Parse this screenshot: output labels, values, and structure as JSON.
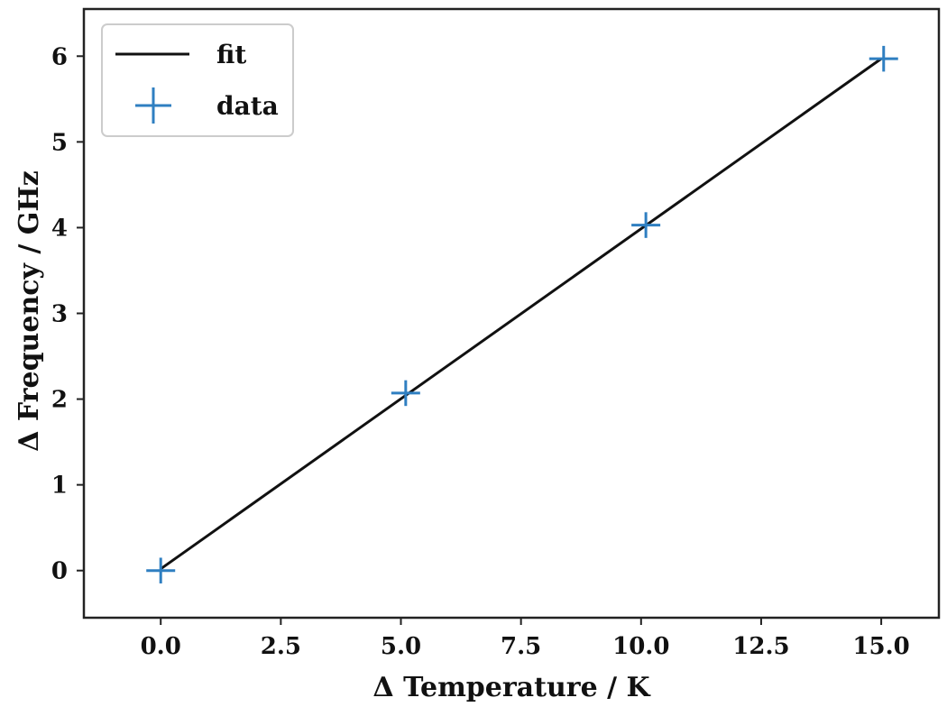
{
  "chart_data": {
    "type": "line",
    "xlabel": "Δ Temperature / K",
    "ylabel": "Δ Frequency / GHz",
    "xlim": [
      -1.6,
      16.2
    ],
    "ylim": [
      -0.55,
      6.55
    ],
    "x_ticks": [
      "0.0",
      "2.5",
      "5.0",
      "7.5",
      "10.0",
      "12.5",
      "15.0"
    ],
    "y_ticks": [
      "0",
      "1",
      "2",
      "3",
      "4",
      "5",
      "6"
    ],
    "grid": false,
    "legend_position": "top-left",
    "series": [
      {
        "name": "fit",
        "kind": "line",
        "color": "#111111",
        "x": [
          0.0,
          15.0
        ],
        "y": [
          0.02,
          5.97
        ]
      },
      {
        "name": "data",
        "kind": "markers",
        "marker": "plus",
        "color": "#2f7fc1",
        "x": [
          0.0,
          5.1,
          10.1,
          15.05
        ],
        "y": [
          0.0,
          2.07,
          4.03,
          5.97
        ],
        "yerr": [
          0.15,
          0.15,
          0.15,
          0.15
        ]
      }
    ]
  }
}
